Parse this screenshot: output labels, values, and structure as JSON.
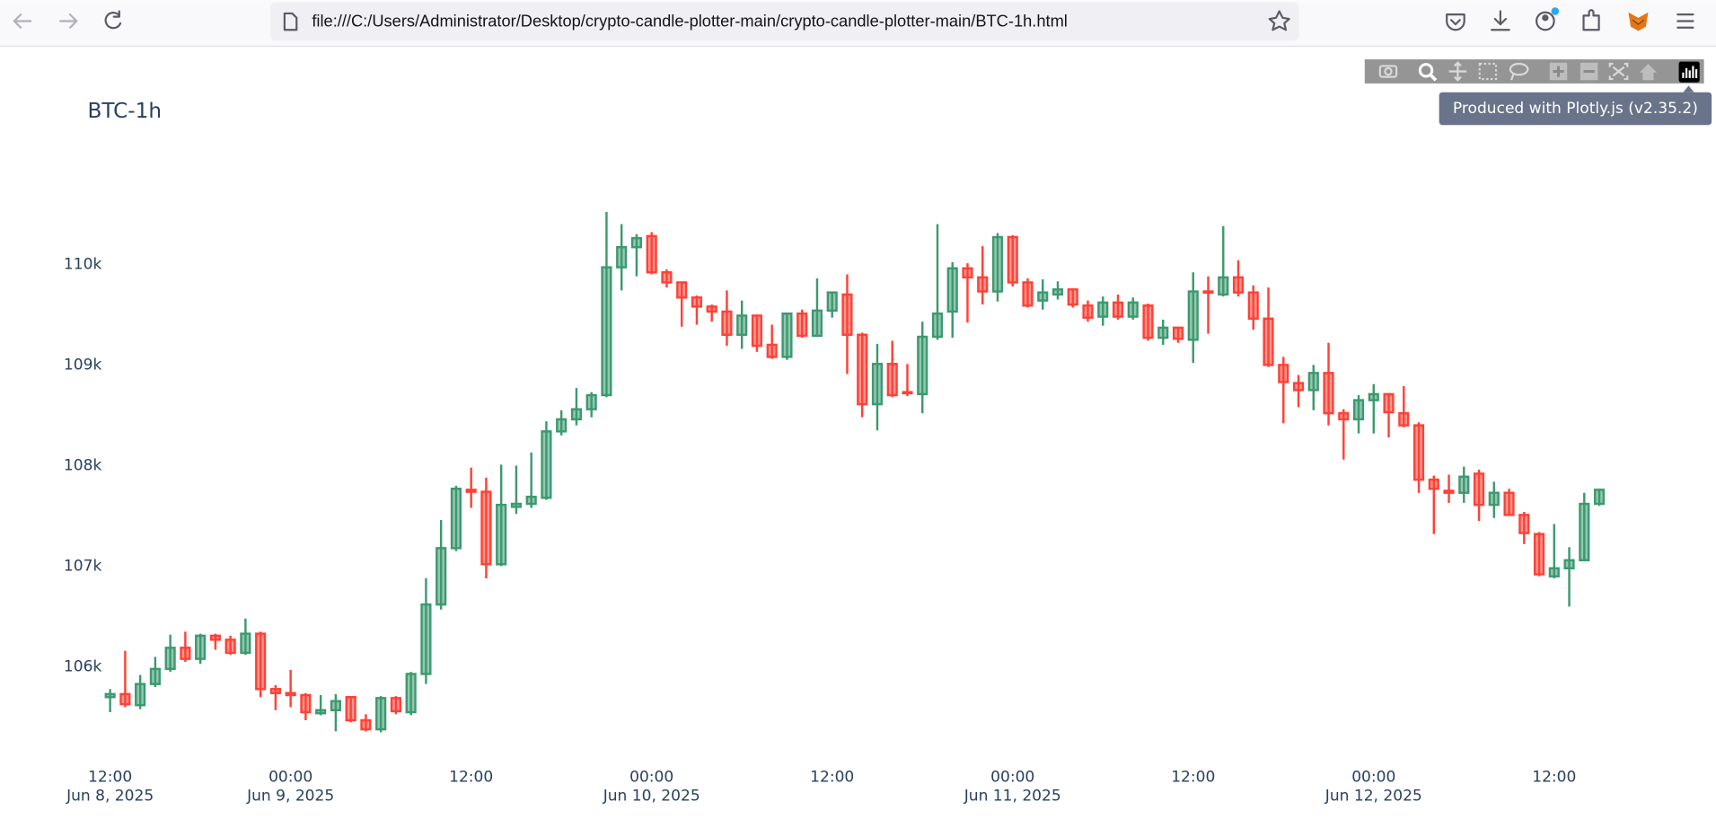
{
  "browser": {
    "url": "file:///C:/Users/Administrator/Desktop/crypto-candle-plotter-main/crypto-candle-plotter-main/BTC-1h.html"
  },
  "modebar": {
    "tooltip": "Produced with Plotly.js (v2.35.2)"
  },
  "chart_data": {
    "type": "candlestick",
    "title": "BTC-1h",
    "x": [
      "2025-06-08 12:00",
      "2025-06-08 13:00",
      "2025-06-08 14:00",
      "2025-06-08 15:00",
      "2025-06-08 16:00",
      "2025-06-08 17:00",
      "2025-06-08 18:00",
      "2025-06-08 19:00",
      "2025-06-08 20:00",
      "2025-06-08 21:00",
      "2025-06-08 22:00",
      "2025-06-08 23:00",
      "2025-06-09 00:00",
      "2025-06-09 01:00",
      "2025-06-09 02:00",
      "2025-06-09 03:00",
      "2025-06-09 04:00",
      "2025-06-09 05:00",
      "2025-06-09 06:00",
      "2025-06-09 07:00",
      "2025-06-09 08:00",
      "2025-06-09 09:00",
      "2025-06-09 10:00",
      "2025-06-09 11:00",
      "2025-06-09 12:00",
      "2025-06-09 13:00",
      "2025-06-09 14:00",
      "2025-06-09 15:00",
      "2025-06-09 16:00",
      "2025-06-09 17:00",
      "2025-06-09 18:00",
      "2025-06-09 19:00",
      "2025-06-09 20:00",
      "2025-06-09 21:00",
      "2025-06-09 22:00",
      "2025-06-09 23:00",
      "2025-06-10 00:00",
      "2025-06-10 01:00",
      "2025-06-10 02:00",
      "2025-06-10 03:00",
      "2025-06-10 04:00",
      "2025-06-10 05:00",
      "2025-06-10 06:00",
      "2025-06-10 07:00",
      "2025-06-10 08:00",
      "2025-06-10 09:00",
      "2025-06-10 10:00",
      "2025-06-10 11:00",
      "2025-06-10 12:00",
      "2025-06-10 13:00",
      "2025-06-10 14:00",
      "2025-06-10 15:00",
      "2025-06-10 16:00",
      "2025-06-10 17:00",
      "2025-06-10 18:00",
      "2025-06-10 19:00",
      "2025-06-10 20:00",
      "2025-06-10 21:00",
      "2025-06-10 22:00",
      "2025-06-10 23:00",
      "2025-06-11 00:00",
      "2025-06-11 01:00",
      "2025-06-11 02:00",
      "2025-06-11 03:00",
      "2025-06-11 04:00",
      "2025-06-11 05:00",
      "2025-06-11 06:00",
      "2025-06-11 07:00",
      "2025-06-11 08:00",
      "2025-06-11 09:00",
      "2025-06-11 10:00",
      "2025-06-11 11:00",
      "2025-06-11 12:00",
      "2025-06-11 13:00",
      "2025-06-11 14:00",
      "2025-06-11 15:00",
      "2025-06-11 16:00",
      "2025-06-11 17:00",
      "2025-06-11 18:00",
      "2025-06-11 19:00",
      "2025-06-11 20:00",
      "2025-06-11 21:00",
      "2025-06-11 22:00",
      "2025-06-11 23:00",
      "2025-06-12 00:00",
      "2025-06-12 01:00",
      "2025-06-12 02:00",
      "2025-06-12 03:00",
      "2025-06-12 04:00",
      "2025-06-12 05:00",
      "2025-06-12 06:00",
      "2025-06-12 07:00",
      "2025-06-12 08:00",
      "2025-06-12 09:00",
      "2025-06-12 10:00",
      "2025-06-12 11:00",
      "2025-06-12 12:00",
      "2025-06-12 13:00",
      "2025-06-12 14:00",
      "2025-06-12 15:00"
    ],
    "open": [
      105700,
      105730,
      105620,
      105830,
      105980,
      106190,
      106080,
      106310,
      106270,
      106140,
      106330,
      105780,
      105740,
      105720,
      105540,
      105570,
      105700,
      105470,
      105380,
      105690,
      105550,
      105930,
      106620,
      107180,
      107760,
      107740,
      107020,
      107590,
      107620,
      107680,
      108340,
      108460,
      108560,
      108700,
      109970,
      110170,
      110280,
      109920,
      109820,
      109670,
      109580,
      109530,
      109300,
      109490,
      109200,
      109080,
      109510,
      109290,
      109540,
      109700,
      109300,
      108610,
      109010,
      108730,
      108710,
      109280,
      109530,
      109960,
      109870,
      109730,
      110270,
      109820,
      109640,
      109700,
      109750,
      109590,
      109480,
      109620,
      109480,
      109590,
      109270,
      109370,
      109250,
      109730,
      109700,
      109870,
      109720,
      109460,
      109000,
      108820,
      108750,
      108920,
      108520,
      108460,
      108650,
      108710,
      108520,
      108400,
      107860,
      107750,
      107730,
      107920,
      107610,
      107730,
      107510,
      107320,
      106900,
      106980,
      107060,
      107620
    ],
    "high": [
      105780,
      106160,
      105920,
      106100,
      106320,
      106350,
      106330,
      106330,
      106310,
      106480,
      106350,
      105820,
      105970,
      105740,
      105720,
      105730,
      105710,
      105530,
      105710,
      105710,
      105950,
      106880,
      107460,
      107800,
      107980,
      107880,
      108010,
      108000,
      108130,
      108440,
      108550,
      108770,
      108730,
      110520,
      110400,
      110300,
      110320,
      109950,
      109820,
      109690,
      109600,
      109740,
      109640,
      109500,
      109400,
      109520,
      109550,
      109860,
      109730,
      109900,
      109320,
      109210,
      109240,
      109010,
      109430,
      110400,
      110020,
      110010,
      110180,
      110310,
      110290,
      109860,
      109850,
      109830,
      109760,
      109640,
      109680,
      109700,
      109670,
      109610,
      109450,
      109380,
      109920,
      109880,
      110380,
      110040,
      109790,
      109770,
      109080,
      108900,
      109000,
      109220,
      108560,
      108700,
      108810,
      108720,
      108790,
      108430,
      107900,
      107910,
      107990,
      107960,
      107840,
      107770,
      107540,
      107340,
      107420,
      107190,
      107730,
      107770
    ],
    "low": [
      105550,
      105600,
      105580,
      105800,
      105950,
      106050,
      106030,
      106170,
      106120,
      106120,
      105700,
      105570,
      105600,
      105470,
      105520,
      105360,
      105450,
      105360,
      105350,
      105530,
      105520,
      105830,
      106570,
      107150,
      107580,
      106880,
      107000,
      107520,
      107580,
      107660,
      108300,
      108400,
      108480,
      108680,
      109740,
      109880,
      109900,
      109770,
      109380,
      109400,
      109430,
      109190,
      109160,
      109130,
      109060,
      109050,
      109270,
      109280,
      109470,
      108910,
      108480,
      108350,
      108680,
      108690,
      108520,
      109250,
      109270,
      109420,
      109600,
      109630,
      109780,
      109570,
      109550,
      109650,
      109570,
      109430,
      109390,
      109450,
      109450,
      109240,
      109200,
      109220,
      109020,
      109310,
      109680,
      109680,
      109350,
      108980,
      108420,
      108580,
      108550,
      108400,
      108060,
      108320,
      108320,
      108280,
      108380,
      107730,
      107320,
      107630,
      107630,
      107450,
      107480,
      107500,
      107220,
      106900,
      106880,
      106600,
      107050,
      107600
    ],
    "close": [
      105730,
      105630,
      105830,
      105980,
      106190,
      106080,
      106310,
      106270,
      106140,
      106330,
      105780,
      105740,
      105720,
      105550,
      105570,
      105660,
      105470,
      105380,
      105690,
      105560,
      105930,
      106620,
      107180,
      107770,
      107740,
      107020,
      107610,
      107620,
      107690,
      108340,
      108460,
      108560,
      108700,
      109970,
      110170,
      110260,
      109920,
      109820,
      109670,
      109580,
      109530,
      109300,
      109490,
      109190,
      109080,
      109510,
      109290,
      109540,
      109720,
      109300,
      108610,
      109010,
      108700,
      108720,
      109280,
      109510,
      109960,
      109870,
      109730,
      110270,
      109820,
      109590,
      109720,
      109750,
      109600,
      109470,
      109620,
      109480,
      109620,
      109270,
      109370,
      109260,
      109730,
      109720,
      109870,
      109720,
      109460,
      109000,
      108830,
      108750,
      108920,
      108520,
      108460,
      108650,
      108710,
      108530,
      108400,
      107860,
      107770,
      107730,
      107890,
      107610,
      107730,
      107510,
      107330,
      106920,
      106980,
      107060,
      107620,
      107760
    ],
    "increasing_color": "#3D9970",
    "decreasing_color": "#FF4136",
    "xlim": [
      "2025-06-08 10:30",
      "2025-06-12 16:30"
    ],
    "xticks": [
      {
        "value": "2025-06-08 12:00",
        "label": [
          "12:00",
          "Jun 8, 2025"
        ]
      },
      {
        "value": "2025-06-09 00:00",
        "label": [
          "00:00",
          "Jun 9, 2025"
        ]
      },
      {
        "value": "2025-06-09 12:00",
        "label": [
          "12:00"
        ]
      },
      {
        "value": "2025-06-10 00:00",
        "label": [
          "00:00",
          "Jun 10, 2025"
        ]
      },
      {
        "value": "2025-06-10 12:00",
        "label": [
          "12:00"
        ]
      },
      {
        "value": "2025-06-11 00:00",
        "label": [
          "00:00",
          "Jun 11, 2025"
        ]
      },
      {
        "value": "2025-06-11 12:00",
        "label": [
          "12:00"
        ]
      },
      {
        "value": "2025-06-12 00:00",
        "label": [
          "00:00",
          "Jun 12, 2025"
        ]
      },
      {
        "value": "2025-06-12 12:00",
        "label": [
          "12:00"
        ]
      }
    ],
    "ylim": [
      105120,
      110720
    ],
    "yticks": [
      {
        "value": 106000,
        "label": "106k"
      },
      {
        "value": 107000,
        "label": "107k"
      },
      {
        "value": 108000,
        "label": "108k"
      },
      {
        "value": 109000,
        "label": "109k"
      },
      {
        "value": 110000,
        "label": "110k"
      }
    ],
    "grid": false
  }
}
